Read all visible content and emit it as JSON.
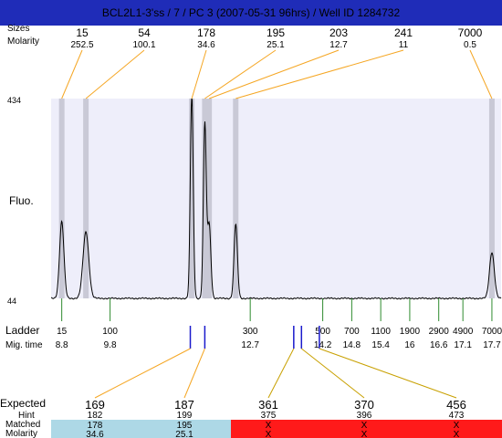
{
  "header": {
    "title": "BCL2L1-3'ss / 7 / PC 3 (2007-05-31 96hrs) / Well ID 1284732"
  },
  "top": {
    "label_sizes": "Sizes",
    "label_molarity": "Molarity",
    "peaks": [
      {
        "size": "15",
        "molarity": "252.5",
        "time": 8.8
      },
      {
        "size": "54",
        "molarity": "100.1",
        "time": 9.3
      },
      {
        "size": "178",
        "molarity": "34.6",
        "time": 11.49
      },
      {
        "size": "195",
        "molarity": "25.1",
        "time": 11.76
      },
      {
        "size": "203",
        "molarity": "12.7",
        "time": 11.85
      },
      {
        "size": "241",
        "molarity": "11",
        "time": 12.4
      },
      {
        "size": "7000",
        "molarity": "0.5",
        "time": 17.7
      }
    ]
  },
  "chart_data": {
    "type": "line",
    "ylabel": "Fluo.",
    "ylim": [
      44,
      434
    ],
    "ytick_labels": [
      "434",
      "44"
    ],
    "xlim": [
      8.58,
      17.89
    ],
    "baseline": 44,
    "peaks": [
      {
        "time": 8.8,
        "height": 150,
        "width": 0.045
      },
      {
        "time": 9.3,
        "height": 130,
        "width": 0.06
      },
      {
        "time": 11.49,
        "height": 400,
        "width": 0.03
      },
      {
        "time": 11.76,
        "height": 340,
        "width": 0.03
      },
      {
        "time": 11.85,
        "height": 145,
        "width": 0.035
      },
      {
        "time": 12.4,
        "height": 145,
        "width": 0.035
      },
      {
        "time": 17.7,
        "height": 90,
        "width": 0.05
      }
    ]
  },
  "ladder": {
    "label": "Ladder",
    "mig_label": "Mig. time",
    "items": [
      {
        "size": "15",
        "time": "8.8"
      },
      {
        "size": "100",
        "time": "9.8"
      },
      {
        "size": "300",
        "time": "12.7"
      },
      {
        "size": "500",
        "time": "14.2"
      },
      {
        "size": "700",
        "time": "14.8"
      },
      {
        "size": "1100",
        "time": "15.4"
      },
      {
        "size": "1900",
        "time": "16"
      },
      {
        "size": "2900",
        "time": "16.6"
      },
      {
        "size": "4900",
        "time": "17.1"
      },
      {
        "size": "7000",
        "time": "17.7"
      }
    ],
    "expected_markers": [
      {
        "time": 11.46
      },
      {
        "time": 11.76
      },
      {
        "time": 13.6
      },
      {
        "time": 13.76
      },
      {
        "time": 14.13
      }
    ]
  },
  "expected": {
    "label_expected": "Expected",
    "label_hint": "Hint",
    "label_matched": "Matched",
    "label_molarity": "Molarity",
    "columns": [
      {
        "expected": "169",
        "hint": "182",
        "matched": "178",
        "molarity": "34.6",
        "status": "matched"
      },
      {
        "expected": "187",
        "hint": "199",
        "matched": "195",
        "molarity": "25.1",
        "status": "matched"
      },
      {
        "expected": "361",
        "hint": "375",
        "matched": "X",
        "molarity": "X",
        "status": "missing"
      },
      {
        "expected": "370",
        "hint": "396",
        "matched": "X",
        "molarity": "X",
        "status": "missing"
      },
      {
        "expected": "456",
        "hint": "473",
        "matched": "X",
        "molarity": "X",
        "status": "missing"
      }
    ]
  },
  "colors": {
    "title_bg": "#1f2cb8",
    "title_fg": "#ffffff",
    "plot_bg": "#eeeefa",
    "peak_band": "#c9c9d6",
    "trace": "#000000",
    "connector": "#f5a623",
    "ladder_tick": "#2e8b2e",
    "marker": "#1a1acc",
    "expected_matched": "#e02020",
    "matched_bg": "#add8e6",
    "missing_bg": "#ff1a1a"
  }
}
